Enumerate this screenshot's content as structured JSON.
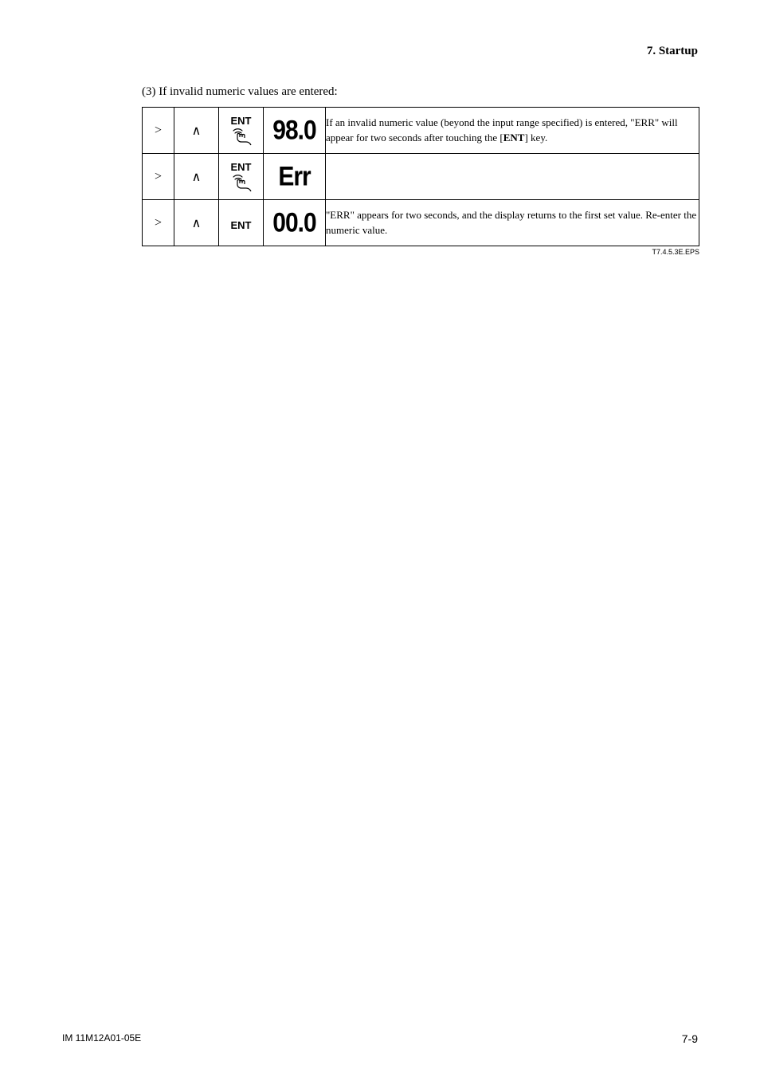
{
  "header": {
    "section": "7.  Startup"
  },
  "caption": "(3) If invalid numeric values are entered:",
  "ent_label": "ENT",
  "rows": [
    {
      "gt": ">",
      "caret": "∧",
      "has_touch": true,
      "display": "98.0",
      "desc_html": "If an invalid numeric value (beyond the input range specified) is entered, \"ERR\" will appear for two seconds after touching the [<b>ENT</b>] key."
    },
    {
      "gt": ">",
      "caret": "∧",
      "has_touch": true,
      "display": "Err",
      "desc_html": ""
    },
    {
      "gt": ">",
      "caret": "∧",
      "has_touch": false,
      "display": "00.0",
      "desc_html": "\"ERR\" appears for two seconds, and the display returns to the first set value. Re-enter the numeric value."
    }
  ],
  "eps_label": "T7.4.5.3E.EPS",
  "footer": {
    "left": "IM 11M12A01-05E",
    "right": "7-9"
  },
  "colors": {
    "text": "#000000",
    "bg": "#ffffff",
    "border": "#000000"
  }
}
